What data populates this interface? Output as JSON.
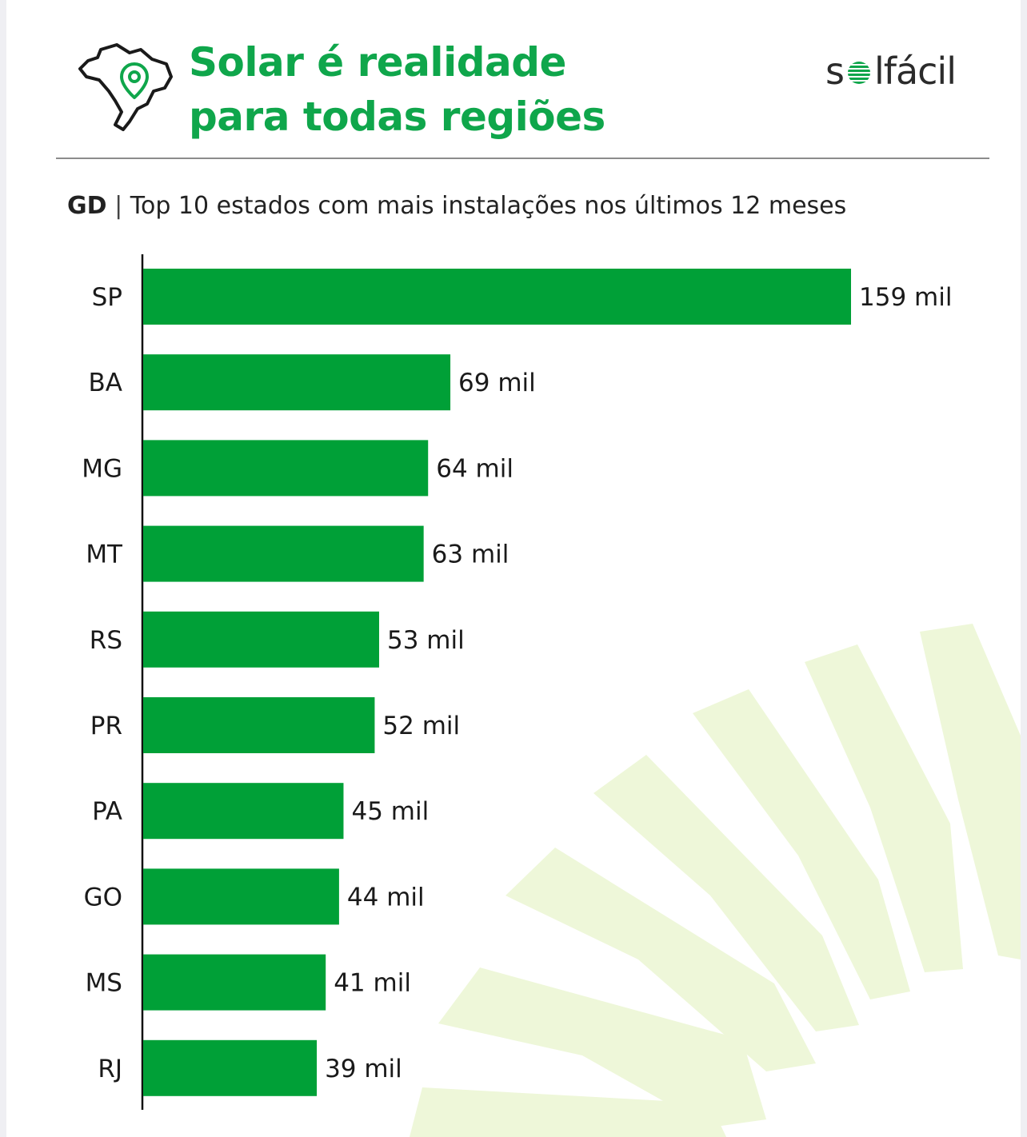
{
  "header": {
    "title_line1": "Solar é realidade",
    "title_line2": "para todas regiões",
    "brand_pre": "s",
    "brand_post": "lfácil",
    "subtitle_bold": "GD",
    "subtitle_sep": "|",
    "subtitle_text": "Top 10 estados com mais instalações nos últimos 12 meses"
  },
  "icons": {
    "map": "brazil-map-location-icon",
    "brand_sun": "sun-stripes-icon"
  },
  "colors": {
    "accent": "#0fa64b",
    "bar": "#00a037",
    "ray": "#eef7d9"
  },
  "chart_data": {
    "type": "bar",
    "orientation": "horizontal",
    "categories": [
      "SP",
      "BA",
      "MG",
      "MT",
      "RS",
      "PR",
      "PA",
      "GO",
      "MS",
      "RJ"
    ],
    "values": [
      159,
      69,
      64,
      63,
      53,
      52,
      45,
      44,
      41,
      39
    ],
    "value_labels": [
      "159 mil",
      "69 mil",
      "64 mil",
      "63 mil",
      "53 mil",
      "52 mil",
      "45 mil",
      "44 mil",
      "41 mil",
      "39 mil"
    ],
    "title": "",
    "xlabel": "",
    "ylabel": "",
    "xlim": [
      0,
      159
    ],
    "grid": false,
    "legend": "none"
  }
}
